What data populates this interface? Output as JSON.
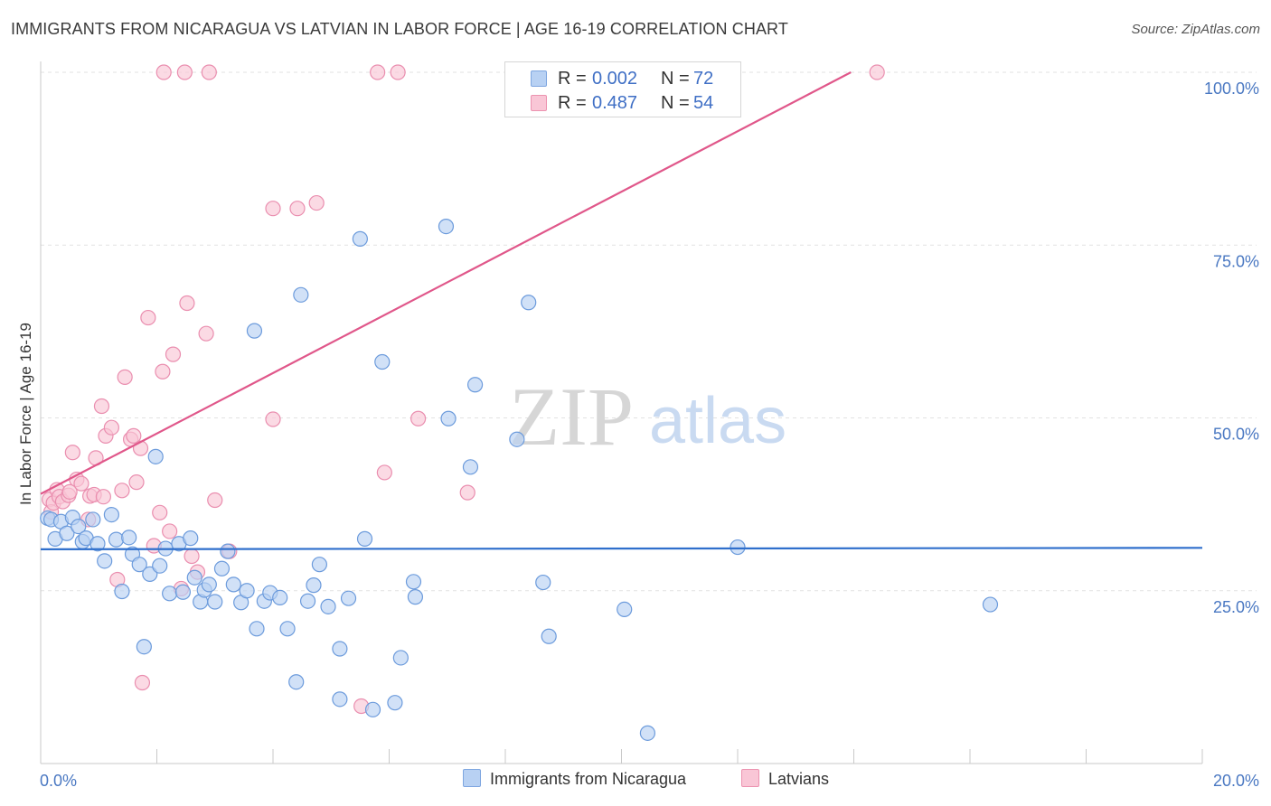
{
  "title": "IMMIGRANTS FROM NICARAGUA VS LATVIAN IN LABOR FORCE | AGE 16-19 CORRELATION CHART",
  "source": "Source: ZipAtlas.com",
  "watermark": {
    "zip": "ZIP",
    "atlas": "atlas"
  },
  "legend": {
    "r_label": "R =",
    "n_label": "N =",
    "series": [
      {
        "r": "0.002",
        "n": "72",
        "fill": "#b8d1f3",
        "stroke": "#7ea6e0"
      },
      {
        "r": "0.487",
        "n": "54",
        "fill": "#f9c6d6",
        "stroke": "#ec93b0"
      }
    ]
  },
  "colors": {
    "blue_fill": "#b8d1f3",
    "blue_stroke": "#6c9bdc",
    "blue_line": "#2f6fcc",
    "pink_fill": "#f9c6d6",
    "pink_stroke": "#ea8eaf",
    "pink_line": "#e0578a",
    "tick_text": "#4a78c2",
    "grid": "#e2e2e2"
  },
  "chart_data": {
    "type": "scatter",
    "title": "IMMIGRANTS FROM NICARAGUA VS LATVIAN IN LABOR FORCE | AGE 16-19 CORRELATION CHART",
    "xlabel": "",
    "ylabel": "In Labor Force | Age 16-19",
    "xlim": [
      0,
      20
    ],
    "ylim": [
      0,
      100
    ],
    "x_tick_labels": [
      "0.0%",
      "20.0%"
    ],
    "y_tick_values": [
      25,
      50,
      75,
      100
    ],
    "y_tick_labels": [
      "25.0%",
      "50.0%",
      "75.0%",
      "100.0%"
    ],
    "series": [
      {
        "name": "Immigrants from Nicaragua",
        "color": "#b8d1f3",
        "r": 0.002,
        "n": 72,
        "trend": {
          "x": [
            0,
            20
          ],
          "y": [
            31.0,
            31.2
          ]
        },
        "points": [
          [
            0.12,
            35.5
          ],
          [
            0.18,
            35.3
          ],
          [
            0.25,
            32.5
          ],
          [
            0.35,
            35.0
          ],
          [
            0.45,
            33.3
          ],
          [
            0.55,
            35.6
          ],
          [
            0.65,
            34.3
          ],
          [
            0.72,
            32.1
          ],
          [
            0.78,
            32.6
          ],
          [
            0.9,
            35.3
          ],
          [
            0.98,
            31.8
          ],
          [
            1.1,
            29.3
          ],
          [
            1.22,
            36.0
          ],
          [
            1.3,
            32.4
          ],
          [
            1.4,
            24.9
          ],
          [
            1.52,
            32.7
          ],
          [
            1.58,
            30.3
          ],
          [
            1.7,
            28.8
          ],
          [
            1.78,
            16.9
          ],
          [
            1.88,
            27.4
          ],
          [
            1.98,
            44.4
          ],
          [
            2.05,
            28.6
          ],
          [
            2.15,
            31.1
          ],
          [
            2.22,
            24.6
          ],
          [
            2.38,
            31.8
          ],
          [
            2.45,
            24.8
          ],
          [
            2.58,
            32.6
          ],
          [
            2.65,
            26.9
          ],
          [
            2.75,
            23.4
          ],
          [
            2.82,
            25.1
          ],
          [
            2.9,
            25.9
          ],
          [
            3.0,
            23.4
          ],
          [
            3.12,
            28.2
          ],
          [
            3.22,
            30.7
          ],
          [
            3.32,
            25.9
          ],
          [
            3.45,
            23.3
          ],
          [
            3.55,
            25.0
          ],
          [
            3.68,
            62.6
          ],
          [
            3.72,
            19.5
          ],
          [
            3.85,
            23.5
          ],
          [
            3.95,
            24.7
          ],
          [
            4.12,
            24.0
          ],
          [
            4.25,
            19.5
          ],
          [
            4.4,
            11.8
          ],
          [
            4.48,
            67.8
          ],
          [
            4.6,
            23.5
          ],
          [
            4.7,
            25.8
          ],
          [
            4.8,
            28.8
          ],
          [
            4.95,
            22.7
          ],
          [
            5.15,
            16.6
          ],
          [
            5.15,
            9.3
          ],
          [
            5.3,
            23.9
          ],
          [
            5.5,
            75.9
          ],
          [
            5.58,
            32.5
          ],
          [
            5.72,
            7.8
          ],
          [
            5.88,
            58.1
          ],
          [
            6.1,
            8.8
          ],
          [
            6.2,
            15.3
          ],
          [
            6.42,
            26.3
          ],
          [
            6.45,
            24.1
          ],
          [
            6.98,
            77.7
          ],
          [
            7.02,
            49.9
          ],
          [
            7.4,
            42.9
          ],
          [
            7.48,
            54.8
          ],
          [
            8.2,
            46.9
          ],
          [
            8.4,
            66.7
          ],
          [
            8.65,
            26.2
          ],
          [
            8.75,
            18.4
          ],
          [
            10.05,
            22.3
          ],
          [
            10.45,
            4.4
          ],
          [
            12.0,
            31.3
          ],
          [
            16.35,
            23.0
          ]
        ]
      },
      {
        "name": "Latvians",
        "color": "#f9c6d6",
        "r": 0.487,
        "n": 54,
        "trend": {
          "x": [
            0,
            13.95
          ],
          "y": [
            39.0,
            100
          ]
        },
        "points": [
          [
            0.15,
            38.2
          ],
          [
            0.18,
            36.4
          ],
          [
            0.22,
            37.7
          ],
          [
            0.28,
            39.6
          ],
          [
            0.32,
            38.6
          ],
          [
            0.38,
            37.9
          ],
          [
            0.48,
            38.8
          ],
          [
            0.5,
            39.3
          ],
          [
            0.55,
            45.0
          ],
          [
            0.62,
            41.1
          ],
          [
            0.7,
            40.5
          ],
          [
            0.82,
            35.3
          ],
          [
            0.85,
            38.7
          ],
          [
            0.92,
            38.9
          ],
          [
            0.95,
            44.2
          ],
          [
            1.05,
            51.7
          ],
          [
            1.08,
            38.6
          ],
          [
            1.12,
            47.4
          ],
          [
            1.22,
            48.6
          ],
          [
            1.32,
            26.6
          ],
          [
            1.4,
            39.5
          ],
          [
            1.45,
            55.9
          ],
          [
            1.55,
            46.9
          ],
          [
            1.6,
            47.4
          ],
          [
            1.65,
            40.7
          ],
          [
            1.72,
            45.6
          ],
          [
            1.75,
            11.7
          ],
          [
            1.85,
            64.5
          ],
          [
            1.95,
            31.5
          ],
          [
            2.05,
            36.3
          ],
          [
            2.1,
            56.7
          ],
          [
            2.12,
            100
          ],
          [
            2.22,
            33.6
          ],
          [
            2.28,
            59.2
          ],
          [
            2.42,
            25.3
          ],
          [
            2.48,
            100
          ],
          [
            2.52,
            66.6
          ],
          [
            2.6,
            30.0
          ],
          [
            2.7,
            27.7
          ],
          [
            2.85,
            62.2
          ],
          [
            2.9,
            100
          ],
          [
            3.0,
            38.1
          ],
          [
            3.25,
            30.7
          ],
          [
            4.0,
            80.3
          ],
          [
            4.0,
            49.8
          ],
          [
            4.42,
            80.3
          ],
          [
            4.75,
            81.1
          ],
          [
            5.52,
            8.3
          ],
          [
            5.8,
            100
          ],
          [
            5.92,
            42.1
          ],
          [
            6.15,
            100
          ],
          [
            6.5,
            49.9
          ],
          [
            7.35,
            39.2
          ],
          [
            14.4,
            100
          ]
        ]
      }
    ]
  }
}
